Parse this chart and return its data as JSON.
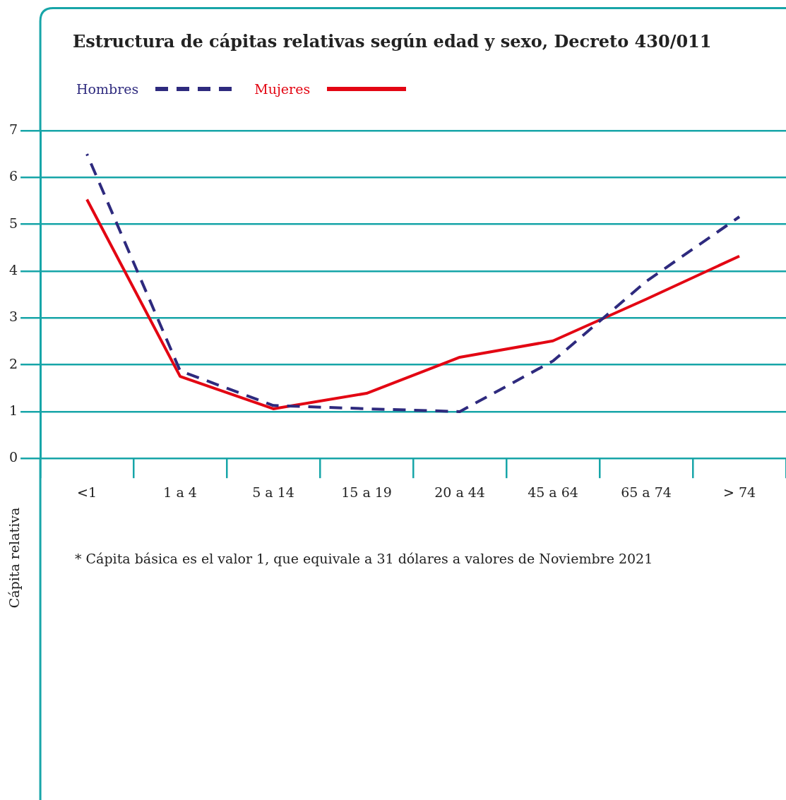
{
  "chart_data": {
    "type": "line",
    "title": "Estructura de cápitas relativas según edad y sexo, Decreto 430/011",
    "ylabel": "Cápita relativa",
    "categories": [
      "<1",
      "1 a 4",
      "5 a 14",
      "15 a 19",
      "20 a 44",
      "45 a 64",
      "65 a 74",
      "> 74"
    ],
    "series": [
      {
        "name": "Hombres",
        "color": "#2e2a7e",
        "line_style": "dashed",
        "values": [
          6.5,
          1.87,
          1.13,
          1.06,
          1.0,
          2.08,
          3.78,
          5.16
        ]
      },
      {
        "name": "Mujeres",
        "color": "#e30613",
        "line_style": "solid",
        "values": [
          5.53,
          1.75,
          1.06,
          1.39,
          2.16,
          2.51,
          3.4,
          4.32
        ]
      }
    ],
    "ylim": [
      0,
      7
    ],
    "yticks": [
      0,
      1,
      2,
      3,
      4,
      5,
      6,
      7
    ],
    "grid": "y",
    "legend": "top left",
    "marker": "none",
    "annotations": [
      "* Cápita básica es el valor 1, que equivale a 31 dólares a valores de Noviembre 2021"
    ]
  }
}
